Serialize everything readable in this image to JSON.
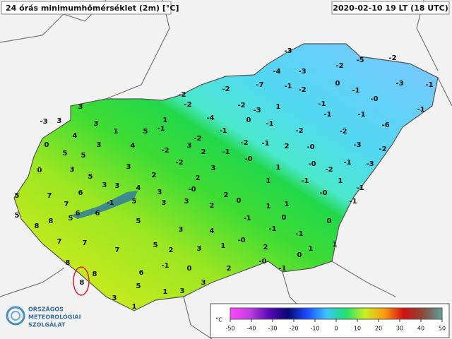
{
  "header": {
    "title": "24 órás minimumhőmérséklet (2m) [°C]",
    "timestamp": "2020-02-10 19 LT (18 UTC)"
  },
  "logo": [
    "ORSZÁGOS",
    "METEOROLÓGIAI",
    "SZOLGÁLAT"
  ],
  "legend": {
    "unit": "°C",
    "range": [
      -50,
      50
    ],
    "ticks": [
      -50,
      -40,
      -30,
      -20,
      -10,
      0,
      10,
      20,
      30,
      40,
      50
    ],
    "colors": [
      "#ff44ff",
      "#c23ee0",
      "#5a0ab8",
      "#080870",
      "#1a4cff",
      "#3cc4ff",
      "#20e070",
      "#c8f020",
      "#ff9a10",
      "#d01010",
      "#8a4a3a",
      "#60a0a0"
    ]
  },
  "stations": [
    "-3",
    "-2",
    "-5",
    "-2",
    "-4",
    "-3",
    "-2",
    "-7",
    "-1",
    "-2",
    "0",
    "-1",
    "-3",
    "-1",
    "-2",
    "-2",
    "-2",
    "-3",
    "1",
    "-1",
    "-0",
    "-1",
    "-4",
    "0",
    "-1",
    "-1",
    "-1",
    "-6",
    "1",
    "-1",
    "-1",
    "-2",
    "-2",
    "-2",
    "3",
    "-2",
    "-1",
    "2",
    "-0",
    "-3",
    "-2",
    "-2",
    "2",
    "-1",
    "-0",
    "-2",
    "-0",
    "-2",
    "-1",
    "-3",
    "1",
    "3",
    "2",
    "1",
    "-1",
    "1",
    "-1",
    "-0",
    "-0",
    "-1",
    "3",
    "2",
    "0",
    "3",
    "2",
    "1",
    "1",
    "-1",
    "0",
    "0",
    "-1",
    "-1",
    "4",
    "-0",
    "3",
    "1",
    "1",
    "2",
    "1",
    "0",
    "2",
    "3",
    "-0",
    "-1",
    "-1",
    "0",
    "2",
    "3",
    "1",
    "3",
    "1",
    "3",
    "3",
    "3",
    "1",
    "3",
    "5",
    "-3",
    "4",
    "0",
    "3",
    "4",
    "5",
    "5",
    "0",
    "3",
    "5",
    "3",
    "2",
    "3",
    "3",
    "4",
    "5",
    "7",
    "6",
    "-1",
    "5",
    "3",
    "7",
    "6",
    "6",
    "5",
    "8",
    "5",
    "5",
    "8",
    "7",
    "7",
    "7",
    "5",
    "8",
    "8",
    "6",
    "8",
    "5"
  ]
}
